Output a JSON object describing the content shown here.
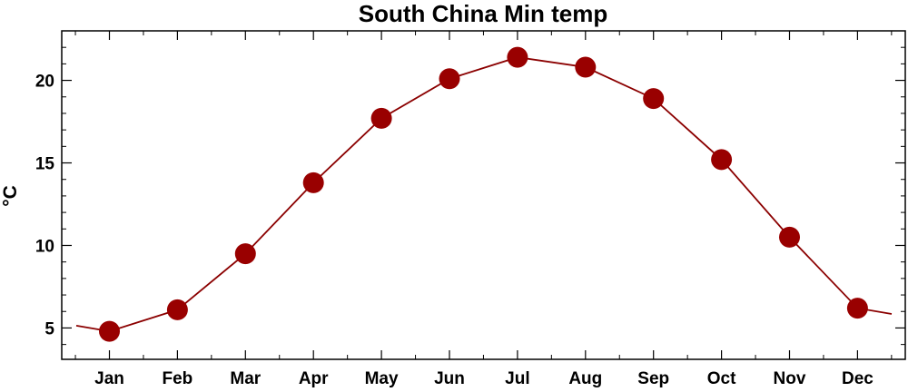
{
  "chart_data": {
    "type": "line",
    "title": "South China Min temp",
    "xlabel": "",
    "ylabel": "°C",
    "categories": [
      "Jan",
      "Feb",
      "Mar",
      "Apr",
      "May",
      "Jun",
      "Jul",
      "Aug",
      "Sep",
      "Oct",
      "Nov",
      "Dec"
    ],
    "series": [
      {
        "values": [
          4.8,
          6.1,
          9.5,
          13.8,
          17.7,
          20.1,
          21.4,
          20.8,
          18.9,
          15.2,
          10.5,
          6.2
        ]
      }
    ],
    "yticks": [
      5,
      10,
      15,
      20
    ],
    "ylim": [
      3.1,
      23.0
    ],
    "grid": false,
    "line_color": "#8b0000",
    "marker_color": "#990000",
    "axis_color": "#000000"
  }
}
